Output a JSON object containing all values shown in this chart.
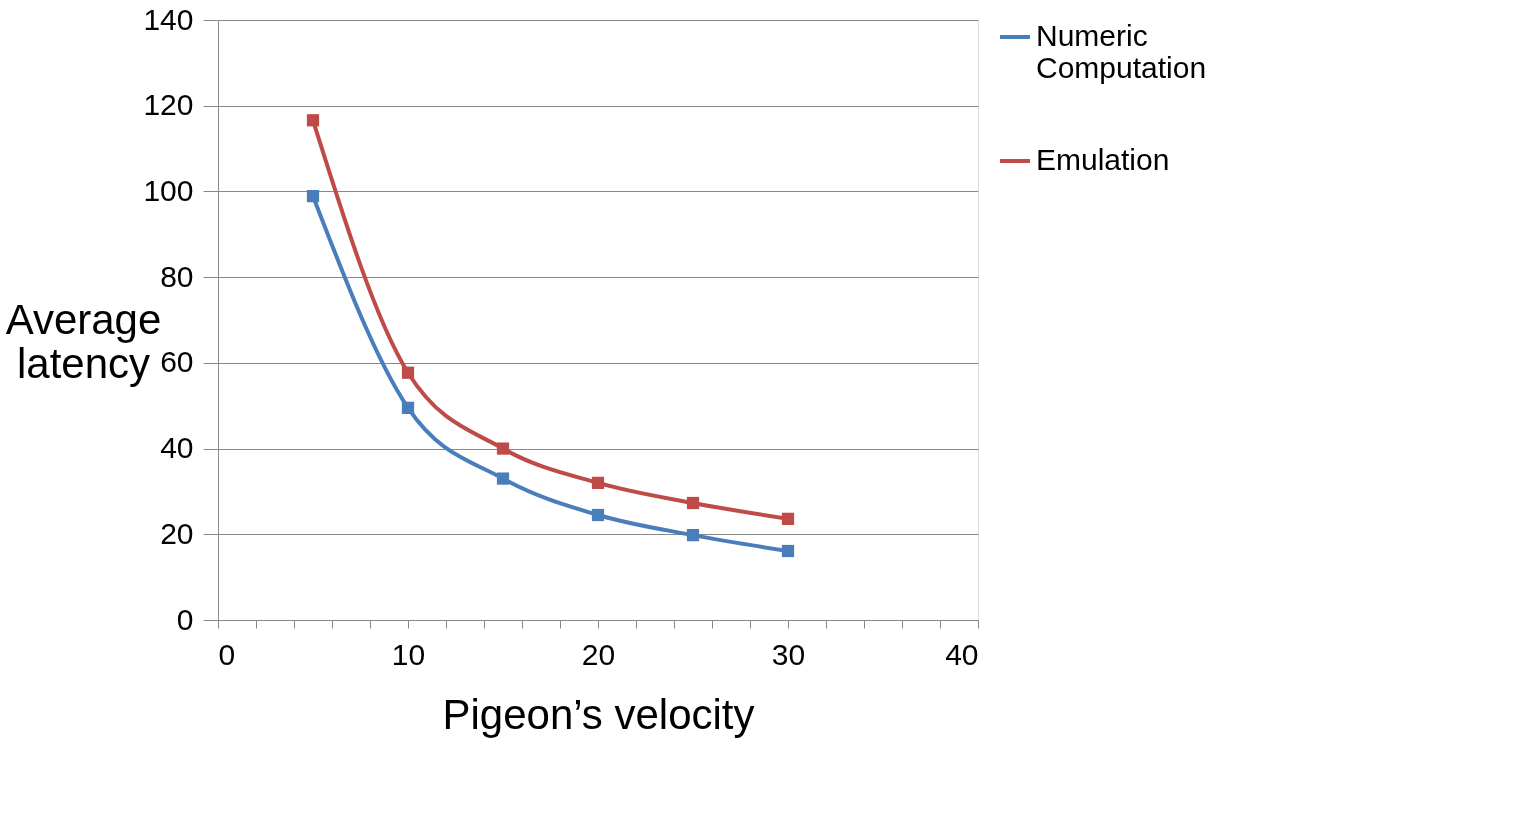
{
  "chart_data": {
    "type": "line",
    "xlabel": "Pigeon’s velocity",
    "ylabel": "Average latency",
    "x": [
      5,
      10,
      15,
      20,
      25,
      30
    ],
    "series": [
      {
        "name": "Numeric Computation",
        "color": "#4a7ebb",
        "values": [
          98.9,
          49.5,
          33,
          24.5,
          19.8,
          16.1
        ]
      },
      {
        "name": "Emulation",
        "color": "#be4b48",
        "values": [
          116.6,
          57.7,
          40,
          32,
          27.3,
          23.6
        ]
      }
    ],
    "xlim": [
      0,
      40
    ],
    "xticks": [
      0,
      {
        "value": 2,
        "label": null
      },
      {
        "value": 4,
        "label": null
      },
      {
        "value": 6,
        "label": null
      },
      {
        "value": 8,
        "label": null
      },
      10,
      {
        "value": 12,
        "label": null
      },
      {
        "value": 14,
        "label": null
      },
      {
        "value": 16,
        "label": null
      },
      {
        "value": 18,
        "label": null
      },
      20,
      {
        "value": 22,
        "label": null
      },
      {
        "value": 24,
        "label": null
      },
      {
        "value": 26,
        "label": null
      },
      {
        "value": 28,
        "label": null
      },
      30,
      {
        "value": 32,
        "label": null
      },
      {
        "value": 34,
        "label": null
      },
      {
        "value": 36,
        "label": null
      },
      {
        "value": 38,
        "label": null
      },
      40
    ],
    "ylim": [
      0,
      140
    ],
    "yticks": [
      0,
      20,
      40,
      60,
      80,
      100,
      120,
      140
    ],
    "grid": "y",
    "legend": "right",
    "marker": "square",
    "line_style": "solid"
  }
}
